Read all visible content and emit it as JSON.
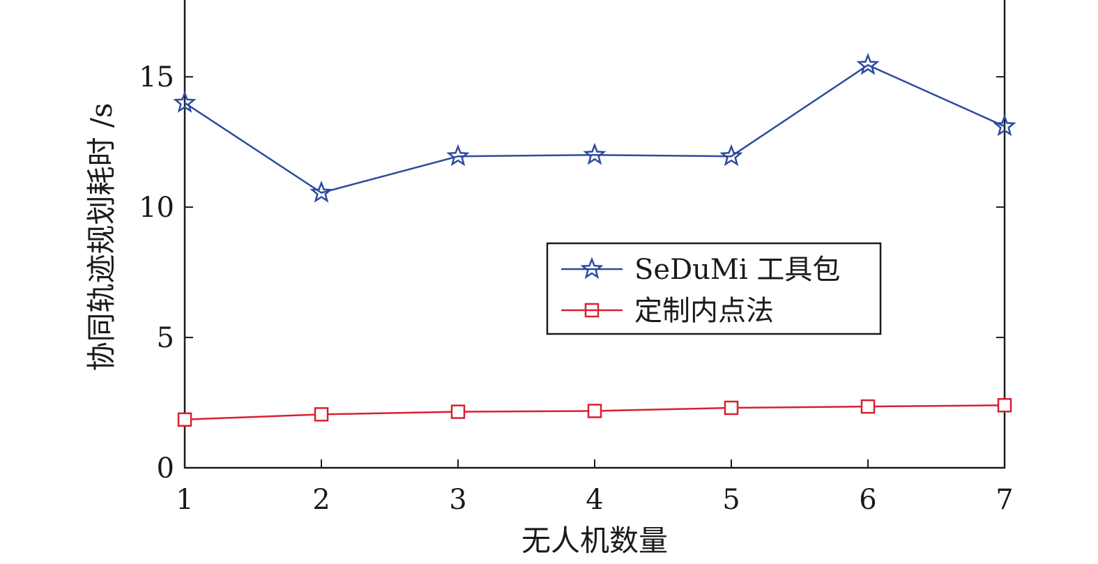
{
  "chart_data": {
    "type": "line",
    "xlabel": "无人机数量",
    "ylabel": "协同轨迹规划耗时 /s",
    "x": [
      1,
      2,
      3,
      4,
      5,
      6,
      7
    ],
    "xlim": [
      1,
      7
    ],
    "ylim": [
      0,
      18
    ],
    "xticks": [
      "1",
      "2",
      "3",
      "4",
      "5",
      "6",
      "7"
    ],
    "yticks": [
      "0",
      "5",
      "10",
      "15"
    ],
    "ytick_values": [
      0,
      5,
      10,
      15
    ],
    "grid": false,
    "legend_position": "center-right",
    "series": [
      {
        "name": "SeDuMi 工具包",
        "marker": "star",
        "color": "#2e4a9e",
        "values": [
          14.0,
          10.55,
          11.95,
          12.0,
          11.95,
          15.45,
          13.1
        ]
      },
      {
        "name": "定制内点法",
        "marker": "square",
        "color": "#d8202e",
        "values": [
          1.85,
          2.05,
          2.15,
          2.18,
          2.3,
          2.35,
          2.4
        ]
      }
    ]
  }
}
